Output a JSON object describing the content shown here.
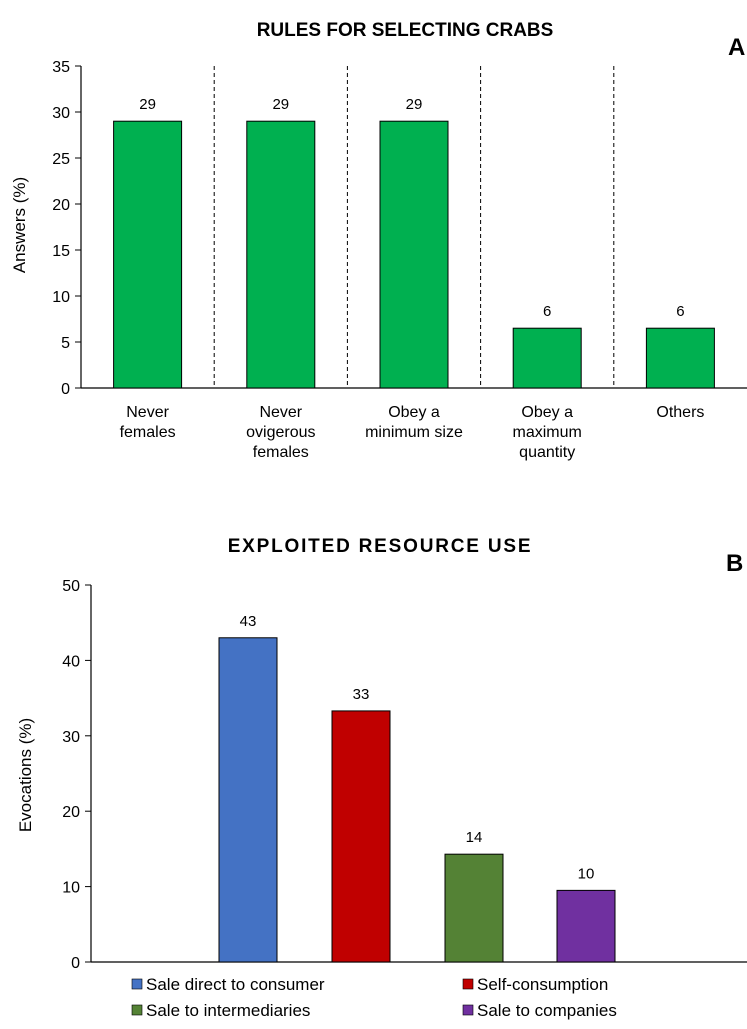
{
  "chart_data": [
    {
      "type": "bar",
      "panel": "A",
      "title": "RULES FOR SELECTING CRABS",
      "ylabel": "Answers  (%)",
      "xlabel": "",
      "ylim": [
        0,
        35
      ],
      "yticks": [
        0,
        5,
        10,
        15,
        20,
        25,
        30,
        35
      ],
      "categories": [
        [
          "Never",
          "females"
        ],
        [
          "Never",
          "ovigerous",
          "females"
        ],
        [
          "Obey a",
          "minimum size"
        ],
        [
          "Obey a",
          "maximum",
          "quantity"
        ],
        [
          "Others"
        ]
      ],
      "values": [
        29,
        29,
        29,
        6.5,
        6.5
      ],
      "data_labels": [
        "29",
        "29",
        "29",
        "6",
        "6"
      ],
      "color": "#00b050",
      "category_separators": "dashed",
      "grid": false
    },
    {
      "type": "bar",
      "panel": "B",
      "title": "EXPLOITED RESOURCE USE",
      "ylabel": "Evocations (%)",
      "xlabel": "",
      "ylim": [
        0,
        50
      ],
      "yticks": [
        0,
        10,
        20,
        30,
        40,
        50
      ],
      "series": [
        {
          "name": "Sale direct to consumer",
          "value": 43,
          "label": "43",
          "color": "#4472c4"
        },
        {
          "name": "Self-consumption",
          "value": 33.3,
          "label": "33",
          "color": "#c00000"
        },
        {
          "name": "Sale to intermediaries",
          "value": 14.3,
          "label": "14",
          "color": "#548235"
        },
        {
          "name": "Sale to companies",
          "value": 9.5,
          "label": "10",
          "color": "#7030a0"
        }
      ],
      "legend_position": "bottom",
      "grid": false
    }
  ]
}
